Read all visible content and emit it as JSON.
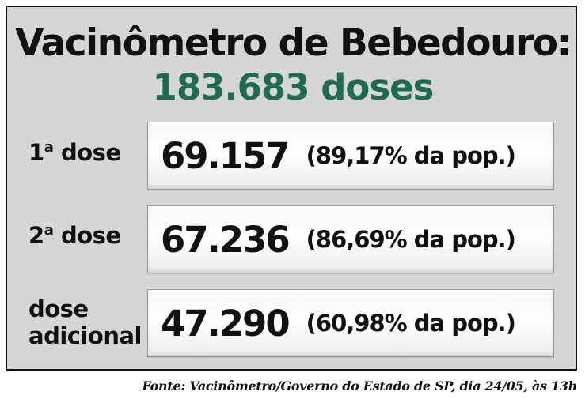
{
  "header": {
    "title": "Vacinômetro de Bebedouro:",
    "total": "183.683  doses",
    "total_color": "#1e6b50"
  },
  "rows": [
    {
      "label_number": "1",
      "label_ordinal": "a",
      "label_rest": " dose",
      "count": "69.157",
      "percent": "(89,17% da pop.)"
    },
    {
      "label_number": "2",
      "label_ordinal": "a",
      "label_rest": " dose",
      "count": "67.236",
      "percent": "(86,69% da pop.)"
    },
    {
      "label_line1": "dose",
      "label_line2": "adicional",
      "count": "47.290",
      "percent": "(60,98% da pop.)"
    }
  ],
  "source": "Fonte: Vacinômetro/Governo do Estado de SP, dia 24/05, às 13h",
  "colors": {
    "panel_background": "#d6d6d6",
    "border": "#111111",
    "text": "#111111",
    "accent_green": "#1e6b50"
  }
}
